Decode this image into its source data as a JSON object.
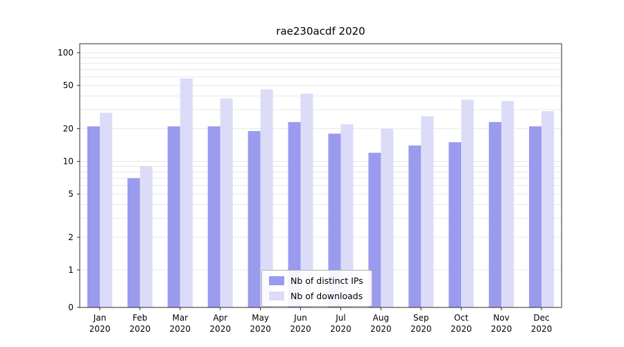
{
  "title": "rae230acdf 2020",
  "legend": {
    "items": [
      {
        "label": "Nb of distinct IPs",
        "color": "#9a9aee"
      },
      {
        "label": "Nb of downloads",
        "color": "#dcdcf8"
      }
    ]
  },
  "chart_data": {
    "type": "bar",
    "title": "rae230acdf 2020",
    "categories": [
      "Jan 2020",
      "Feb 2020",
      "Mar 2020",
      "Apr 2020",
      "May 2020",
      "Jun 2020",
      "Jul 2020",
      "Aug 2020",
      "Sep 2020",
      "Oct 2020",
      "Nov 2020",
      "Dec 2020"
    ],
    "series": [
      {
        "name": "Nb of distinct IPs",
        "color": "#9a9aee",
        "values": [
          21,
          7,
          21,
          21,
          19,
          23,
          18,
          12,
          14,
          15,
          23,
          21
        ]
      },
      {
        "name": "Nb of downloads",
        "color": "#dcdcf8",
        "values": [
          28,
          9,
          58,
          38,
          46,
          42,
          22,
          20,
          26,
          37,
          36,
          29
        ]
      }
    ],
    "xlabel": "",
    "ylabel": "",
    "yticks": [
      0,
      1,
      2,
      5,
      10,
      20,
      50,
      100
    ],
    "ylim": [
      0,
      100
    ],
    "scale": "symlog",
    "grid": true,
    "grid_color": "#e7e7e7",
    "axis_color": "#2a2a2a",
    "legend_position": "lower center"
  }
}
